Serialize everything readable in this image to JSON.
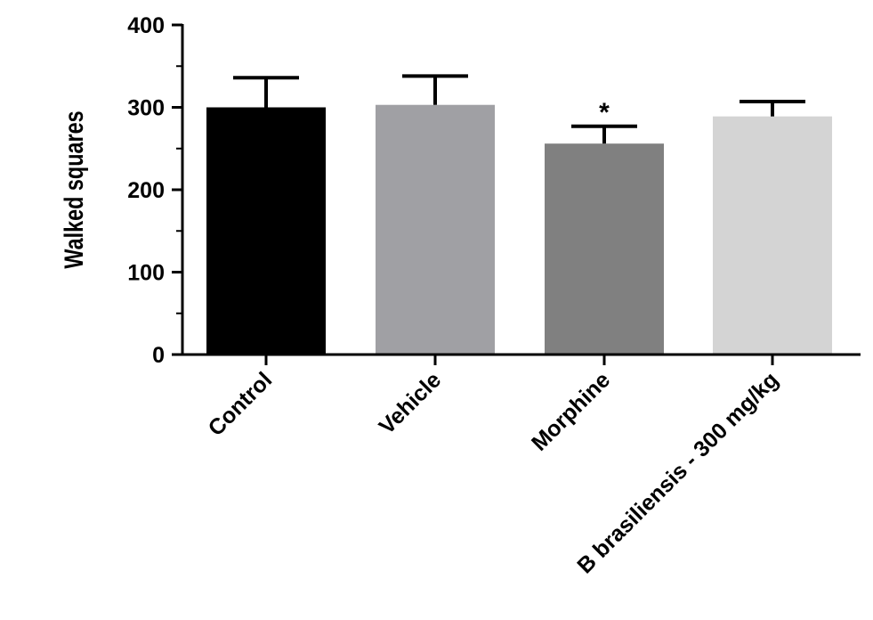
{
  "chart_data": {
    "type": "bar",
    "title": "",
    "xlabel": "",
    "ylabel": "Walked squares",
    "ylim": [
      0,
      400
    ],
    "yticks": [
      0,
      100,
      200,
      300,
      400
    ],
    "categories": [
      "Control",
      "Vehicle",
      "Morphine",
      "B brasiliensis - 300 mg/kg"
    ],
    "values": [
      300,
      303,
      256,
      289
    ],
    "error_upper": [
      336,
      338,
      277,
      307
    ],
    "colors": [
      "#000000",
      "#a0a0a4",
      "#808080",
      "#d4d4d4"
    ],
    "annotations": [
      {
        "category": "Morphine",
        "text": "*"
      }
    ],
    "grid": false,
    "legend": "none"
  }
}
